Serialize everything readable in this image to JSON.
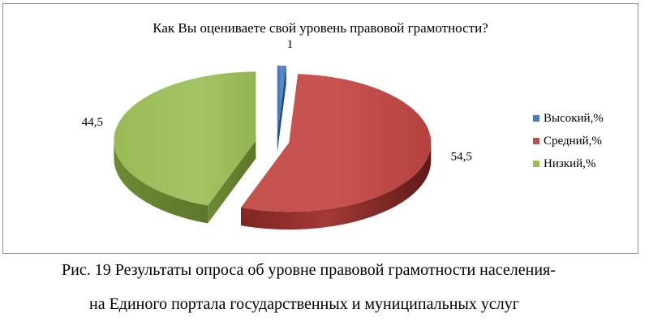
{
  "chart_data": {
    "type": "pie",
    "style": "3d-exploded",
    "title": "Как Вы оцениваете свой уровень правовой грамотности?",
    "categories": [
      "Высокий,%",
      "Средний,%",
      "Низкий,%"
    ],
    "values": [
      1,
      54.5,
      44.5
    ],
    "data_labels": [
      "1",
      "54,5",
      "44,5"
    ],
    "colors": [
      "#4a7ebb",
      "#c0504d",
      "#9bbb59"
    ],
    "legend": {
      "position": "right",
      "entries": [
        "Высокий,%",
        "Средний,%",
        "Низкий,%"
      ]
    }
  },
  "caption": {
    "line1": "Рис. 19 Результаты опроса об уровне правовой грамотности населения-",
    "line2": "на Единого портала государственных и муниципальных услуг"
  }
}
